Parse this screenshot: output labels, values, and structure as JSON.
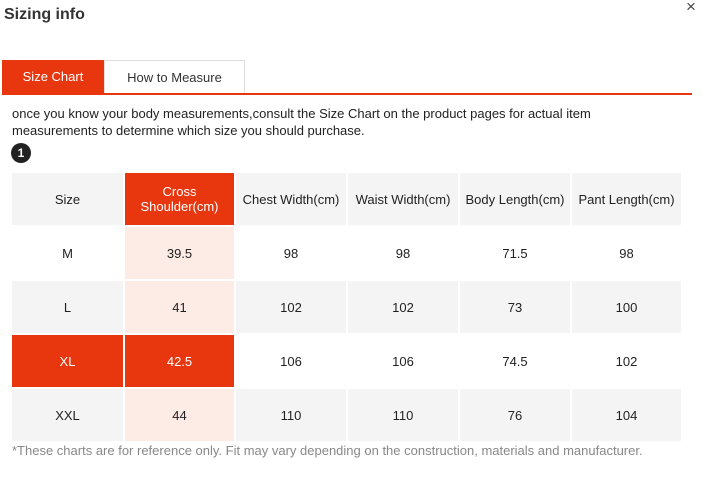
{
  "header": {
    "title": "Sizing info",
    "close": "×"
  },
  "tabs": [
    "Size Chart",
    "How to Measure"
  ],
  "description": "once you know your body measurements,consult the Size Chart on the product pages for actual item measurements to determine which size you should purchase.",
  "badge": "1",
  "table": {
    "columns": [
      "Size",
      "Cross Shoulder(cm)",
      "Chest Width(cm)",
      "Waist Width(cm)",
      "Body Length(cm)",
      "Pant Length(cm)"
    ],
    "rows": [
      [
        "M",
        39.5,
        98,
        98,
        71.5,
        98
      ],
      [
        "L",
        41,
        102,
        102,
        73,
        100
      ],
      [
        "XL",
        42.5,
        106,
        106,
        74.5,
        102
      ],
      [
        "XXL",
        44,
        110,
        110,
        76,
        104
      ]
    ]
  },
  "footnote": "*These charts are for reference only. Fit may vary depending on the construction, materials and manufacturer."
}
